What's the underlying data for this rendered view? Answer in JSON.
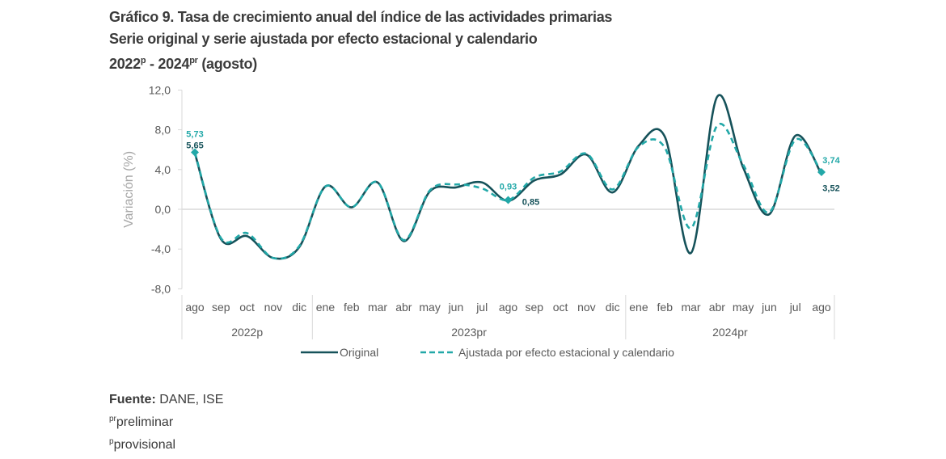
{
  "title": {
    "line1": "Gráfico 9. Tasa de crecimiento anual del índice de las actividades primarias",
    "line2": "Serie original y serie ajustada por efecto estacional y calendario",
    "line3_a": "2022",
    "line3_a_sup": "p",
    "line3_b": " - 2024",
    "line3_b_sup": "pr",
    "line3_c": " (agosto)"
  },
  "footer": {
    "source_label": "Fuente:",
    "source_value": " DANE, ISE",
    "note1_sup": "pr",
    "note1": "preliminar",
    "note2_sup": "p",
    "note2": "provisional"
  },
  "colors": {
    "original": "#16525a",
    "adjusted": "#22a8a8",
    "grid": "#d9d9d9",
    "axis_text": "#595959"
  },
  "chart_data": {
    "type": "line",
    "title": "Tasa de crecimiento anual del índice de las actividades primarias",
    "xlabel": "",
    "ylabel": "Variación (%)",
    "ylim": [
      -8,
      12
    ],
    "yticks": [
      12,
      8,
      4,
      0,
      -4,
      -8
    ],
    "ytick_labels": [
      "12,0",
      "8,0",
      "4,0",
      "0,0",
      "-4,0",
      "-8,0"
    ],
    "grid": "zero-line only",
    "legend_position": "bottom",
    "categories": [
      "ago",
      "sep",
      "oct",
      "nov",
      "dic",
      "ene",
      "feb",
      "mar",
      "abr",
      "may",
      "jun",
      "jul",
      "ago",
      "sep",
      "oct",
      "nov",
      "dic",
      "ene",
      "feb",
      "mar",
      "abr",
      "may",
      "jun",
      "jul",
      "ago"
    ],
    "groups": [
      {
        "label": "2022p",
        "start": 0,
        "end": 4
      },
      {
        "label": "2023pr",
        "start": 5,
        "end": 16
      },
      {
        "label": "2024pr",
        "start": 17,
        "end": 24
      }
    ],
    "series": [
      {
        "name": "Original",
        "style": "solid",
        "values": [
          5.65,
          -3.0,
          -2.7,
          -4.9,
          -3.8,
          2.3,
          0.2,
          2.7,
          -3.2,
          1.8,
          2.2,
          2.7,
          0.85,
          2.9,
          3.5,
          5.5,
          1.7,
          6.4,
          7.3,
          -4.4,
          11.3,
          4.2,
          -0.5,
          7.4,
          3.52
        ]
      },
      {
        "name": "Ajustada por efecto estacional y calendario",
        "style": "dashed",
        "values": [
          5.73,
          -2.9,
          -2.4,
          -4.9,
          -3.7,
          2.3,
          0.2,
          2.7,
          -3.1,
          1.9,
          2.5,
          2.1,
          0.93,
          3.2,
          3.8,
          5.6,
          2.0,
          6.3,
          6.2,
          -1.9,
          8.4,
          4.5,
          -0.3,
          7.0,
          3.74
        ]
      }
    ],
    "annotations": [
      {
        "series": "Ajustada por efecto estacional y calendario",
        "index": 0,
        "text": "5,73"
      },
      {
        "series": "Original",
        "index": 0,
        "text": "5,65"
      },
      {
        "series": "Ajustada por efecto estacional y calendario",
        "index": 12,
        "text": "0,93"
      },
      {
        "series": "Original",
        "index": 12,
        "text": "0,85"
      },
      {
        "series": "Ajustada por efecto estacional y calendario",
        "index": 24,
        "text": "3,74"
      },
      {
        "series": "Original",
        "index": 24,
        "text": "3,52"
      }
    ]
  }
}
